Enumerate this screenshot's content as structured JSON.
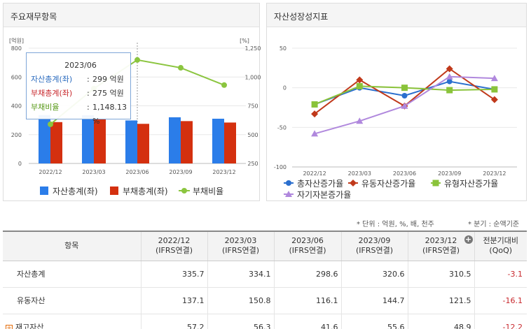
{
  "left_panel": {
    "title": "주요재무항목",
    "tooltip": {
      "title": "2023/06",
      "rows": [
        {
          "label": "자산총계(좌)",
          "sep": ":",
          "value": "299 억원",
          "color": "#2c6cbf"
        },
        {
          "label": "부채총계(좌)",
          "sep": ":",
          "value": "275 억원",
          "color": "#c8282d"
        },
        {
          "label": "부채비율",
          "sep": ":",
          "value": "1,148.13 %",
          "color": "#5a9b1b"
        }
      ]
    }
  },
  "right_panel": {
    "title": "자산성장성지표"
  },
  "notes": {
    "unit": "* 단위 : 억원, %, 배, 천주",
    "quarter": "* 분기 : 순액기준"
  },
  "chart_data": [
    {
      "type": "bar",
      "categories": [
        "2022/12",
        "2023/03",
        "2023/06",
        "2023/09",
        "2023/12"
      ],
      "left_unit": "[억원]",
      "right_unit": "[%]",
      "ylim": [
        0,
        800
      ],
      "y_ticks": [
        "0",
        "200",
        "400",
        "600",
        "800"
      ],
      "y2lim": [
        250,
        1250
      ],
      "y2_ticks": [
        "250",
        "500",
        "750",
        "1,000",
        "1,250"
      ],
      "series": [
        {
          "name": "자산총계(좌)",
          "kind": "bar",
          "axis": "left",
          "color": "#2b7de9",
          "values": [
            335.7,
            334.1,
            298.6,
            320.6,
            310.5
          ]
        },
        {
          "name": "부채총계(좌)",
          "kind": "bar",
          "axis": "left",
          "color": "#d4300f",
          "values": [
            287,
            308,
            275,
            294,
            284
          ]
        },
        {
          "name": "부채비율",
          "kind": "line",
          "axis": "right",
          "color": "#8bc53f",
          "values": [
            590,
            900,
            1148.13,
            1080,
            930
          ]
        }
      ],
      "highlighted_category": "2023/06",
      "legend": "bottom"
    },
    {
      "type": "line",
      "categories": [
        "2022/12",
        "2023/03",
        "2023/06",
        "2023/09",
        "2023/12"
      ],
      "ylim": [
        -100,
        50
      ],
      "y_ticks": [
        "-100",
        "-50",
        "0",
        "50"
      ],
      "series": [
        {
          "name": "총자산증가율",
          "color": "#2b6fce",
          "marker": "circle",
          "values": [
            -21,
            0,
            -10,
            8,
            -2
          ]
        },
        {
          "name": "유동자산증가율",
          "color": "#c0391b",
          "marker": "diamond",
          "values": [
            -33,
            10,
            -23,
            24,
            -15
          ]
        },
        {
          "name": "유형자산증가율",
          "color": "#8ac33a",
          "marker": "square",
          "values": [
            -21,
            2,
            0,
            -3,
            -2
          ]
        },
        {
          "name": "자기자본증가율",
          "color": "#b088dd",
          "marker": "triangle",
          "values": [
            -58,
            -42,
            -23,
            14,
            12
          ]
        }
      ],
      "legend": "bottom"
    }
  ],
  "table": {
    "header": {
      "item": "항목",
      "periods": [
        {
          "date": "2022/12",
          "basis": "(IFRS연결)"
        },
        {
          "date": "2023/03",
          "basis": "(IFRS연결)"
        },
        {
          "date": "2023/06",
          "basis": "(IFRS연결)"
        },
        {
          "date": "2023/09",
          "basis": "(IFRS연결)"
        },
        {
          "date": "2023/12",
          "basis": "(IFRS연결)"
        }
      ],
      "change": {
        "line1": "전분기대비",
        "line2": "(QoQ)"
      }
    },
    "rows": [
      {
        "name": "자산총계",
        "values": [
          "335.7",
          "334.1",
          "298.6",
          "320.6",
          "310.5"
        ],
        "change": "-3.1",
        "expand": ""
      },
      {
        "name": "유동자산",
        "values": [
          "137.1",
          "150.8",
          "116.1",
          "144.7",
          "121.5"
        ],
        "change": "-16.1",
        "expand": ""
      },
      {
        "name": "재고자산",
        "values": [
          "57.2",
          "56.3",
          "41.6",
          "55.6",
          "48.9"
        ],
        "change": "-12.2",
        "expand": "+"
      }
    ]
  }
}
